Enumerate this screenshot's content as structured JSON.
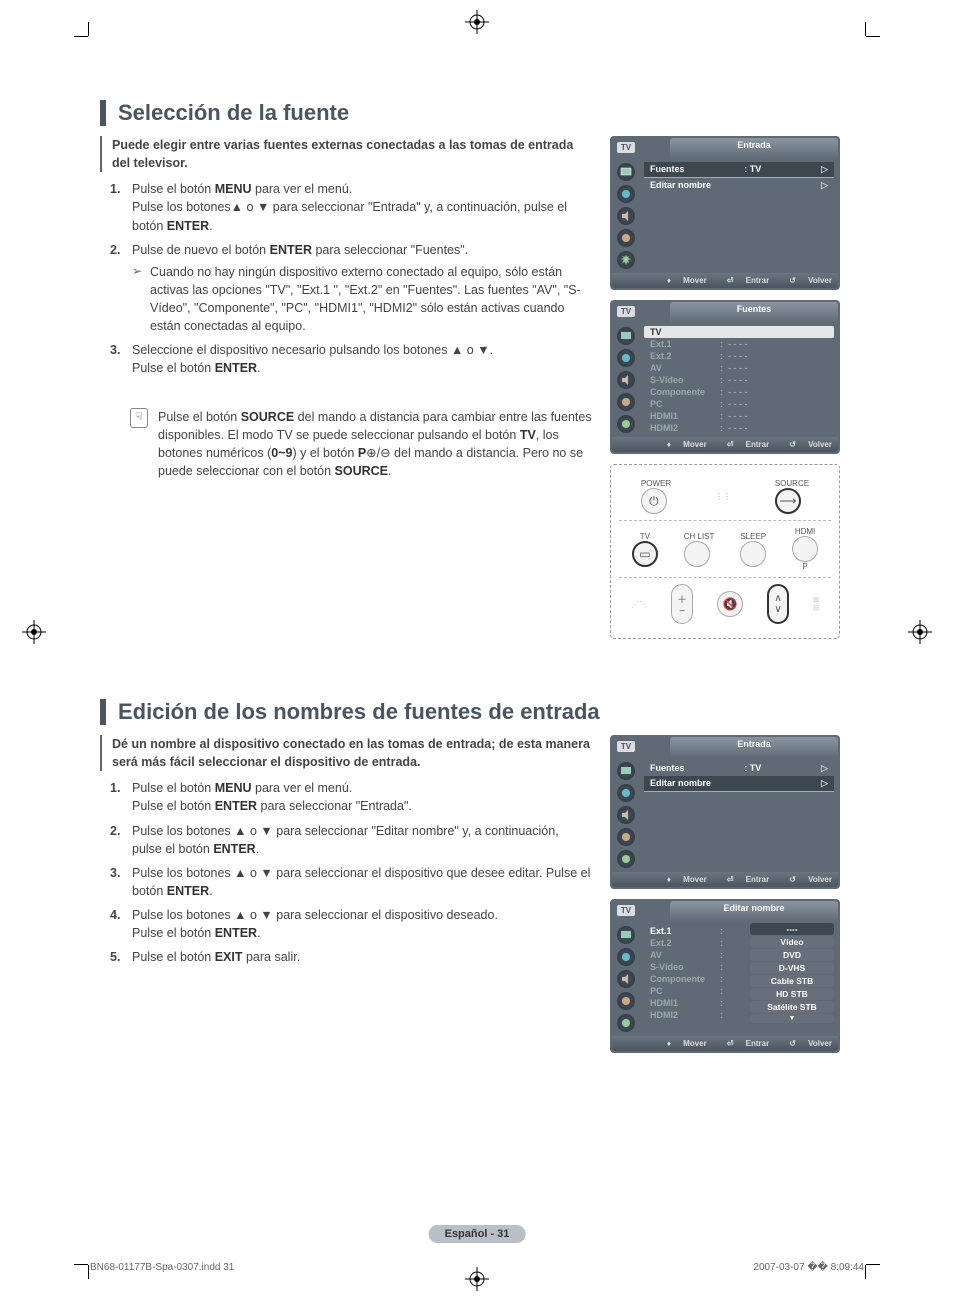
{
  "crop_marks": true,
  "section1": {
    "title": "Selección de la fuente",
    "intro": "Puede elegir entre varias fuentes externas conectadas a las tomas de entrada del televisor.",
    "steps": [
      {
        "n": "1.",
        "text": "Pulse el botón <b>MENU</b> para ver el menú.<br>Pulse los botones▲ o ▼ para seleccionar \"Entrada\" y, a continuación, pulse el botón <b>ENTER</b>."
      },
      {
        "n": "2.",
        "text": "Pulse de nuevo el botón <b>ENTER</b> para seleccionar \"Fuentes\".",
        "sub": "Cuando no hay ningún dispositivo externo conectado al equipo, sólo están activas las opciones \"TV\", \"Ext.1 \", \"Ext.2\" en \"Fuentes\". Las fuentes \"AV\", \"S-Vídeo\", \"Componente\", \"PC\", \"HDMI1\", \"HDMI2\" sólo están activas cuando están conectadas al equipo."
      },
      {
        "n": "3.",
        "text": "Seleccione el dispositivo necesario pulsando los botones ▲ o ▼.<br>Pulse el botón <b>ENTER</b>."
      }
    ],
    "note": "Pulse el botón <b>SOURCE</b> del mando a distancia para cambiar entre las fuentes disponibles. El modo TV se puede seleccionar pulsando el botón <b>TV</b>, los botones numéricos (<b>0~9</b>) y el botón <b>P</b>⊕/⊖ del mando a distancia. Pero no se puede seleccionar con el botón <b>SOURCE</b>."
  },
  "section2": {
    "title": "Edición de los nombres de fuentes de entrada",
    "intro": "Dé un nombre al dispositivo conectado en las tomas de entrada; de esta manera será más fácil seleccionar el dispositivo de entrada.",
    "steps": [
      {
        "n": "1.",
        "text": "Pulse el botón <b>MENU</b> para ver el menú.<br>Pulse el botón <b>ENTER</b> para seleccionar \"Entrada\"."
      },
      {
        "n": "2.",
        "text": "Pulse los botones ▲ o ▼ para seleccionar \"Editar nombre\" y, a continuación, pulse el botón <b>ENTER</b>."
      },
      {
        "n": "3.",
        "text": "Pulse los botones ▲ o ▼ para seleccionar el dispositivo que desee editar. Pulse el botón <b>ENTER</b>."
      },
      {
        "n": "4.",
        "text": "Pulse los botones ▲ o ▼ para seleccionar el dispositivo deseado.<br>Pulse el botón <b>ENTER</b>."
      },
      {
        "n": "5.",
        "text": "Pulse el botón <b>EXIT</b> para salir."
      }
    ]
  },
  "osd_entrada": {
    "title": "Entrada",
    "tv": "TV",
    "rows": [
      {
        "label": "Fuentes",
        "value": ": TV",
        "hl": true
      },
      {
        "label": "Editar nombre",
        "value": "",
        "hl": false
      }
    ],
    "footer": {
      "move": "Mover",
      "enter": "Entrar",
      "back": "Volver"
    }
  },
  "osd_fuentes": {
    "title": "Fuentes",
    "tv": "TV",
    "active": "TV",
    "sources": [
      {
        "name": "Ext.1",
        "val": "- - - -"
      },
      {
        "name": "Ext.2",
        "val": "- - - -"
      },
      {
        "name": "AV",
        "val": "- - - -"
      },
      {
        "name": "S-Vídeo",
        "val": "- - - -"
      },
      {
        "name": "Componente",
        "val": "- - - -"
      },
      {
        "name": "PC",
        "val": "- - - -"
      },
      {
        "name": "HDMI1",
        "val": "- - - -"
      },
      {
        "name": "HDMI2",
        "val": "- - - -"
      }
    ],
    "footer": {
      "move": "Mover",
      "enter": "Entrar",
      "back": "Volver"
    }
  },
  "osd_entrada2": {
    "title": "Entrada",
    "tv": "TV",
    "rows": [
      {
        "label": "Fuentes",
        "value": ": TV",
        "hl": false
      },
      {
        "label": "Editar nombre",
        "value": "",
        "hl": true
      }
    ],
    "footer": {
      "move": "Mover",
      "enter": "Entrar",
      "back": "Volver"
    }
  },
  "osd_editar": {
    "title": "Editar nombre",
    "tv": "TV",
    "sources": [
      "Ext.1",
      "Ext.2",
      "AV",
      "S-Vídeo",
      "Componente",
      "PC",
      "HDMI1",
      "HDMI2"
    ],
    "options": [
      "----",
      "Vídeo",
      "DVD",
      "D-VHS",
      "Cable STB",
      "HD STB",
      "Satélite STB"
    ],
    "option_hl": 0,
    "active_source": 0,
    "footer": {
      "move": "Mover",
      "enter": "Entrar",
      "back": "Volver"
    }
  },
  "remote": {
    "power": "POWER",
    "source": "SOURCE",
    "tv": "TV",
    "chlist": "CH LIST",
    "sleep": "SLEEP",
    "hdmi": "HDMI",
    "p": "P"
  },
  "page_badge": "Español - 31",
  "footer_left": "BN68-01177B-Spa-0307.indd   31",
  "footer_right": "2007-03-07   �� 8:09:44",
  "colors": {
    "heading": "#4a5560",
    "osd_bg": "#5f6a74",
    "osd_hl": "#3d4750",
    "badge": "#b8bfc6"
  }
}
